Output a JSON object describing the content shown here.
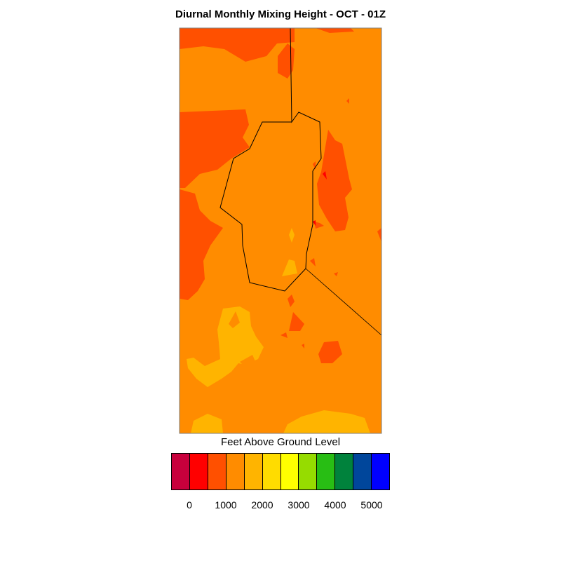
{
  "title": "Diurnal Monthly Mixing Height - OCT - 01Z",
  "colorbar": {
    "title": "Feet Above Ground Level",
    "colors": [
      "#c8003c",
      "#ff0000",
      "#ff5000",
      "#ff8c00",
      "#ffb400",
      "#ffdc00",
      "#ffff00",
      "#96dc00",
      "#28be14",
      "#00823c",
      "#00469b",
      "#0000ff"
    ],
    "tick_labels": [
      "0",
      "1000",
      "2000",
      "3000",
      "4000",
      "5000"
    ]
  },
  "map_colors": {
    "base": "#ff8c00",
    "high": "#ffb400",
    "low": "#ff5000",
    "lowest": "#ff0000",
    "boundary": "#000000",
    "frame": "#7f7f7f"
  }
}
